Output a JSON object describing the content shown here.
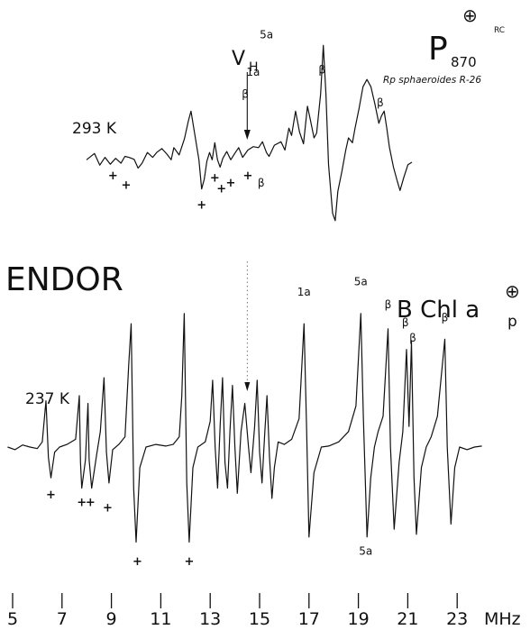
{
  "chart_data": {
    "type": "line",
    "x_unit": "MHz",
    "xlim": [
      5,
      24
    ],
    "x_ticks": [
      5,
      7,
      9,
      11,
      13,
      15,
      17,
      19,
      21,
      23
    ],
    "vh_label": "V",
    "vh_sub": "H",
    "vh_x": 14.5,
    "endor_label": "ENDOR",
    "top": {
      "temp_label": "293 K",
      "title_main": "P",
      "title_sub": "870",
      "title_sup": "⊕",
      "title_rc": "RC",
      "subtitle": "Rp  sphaeroides R-26",
      "xrange": [
        4.1,
        16.4
      ],
      "points": [
        [
          4.1,
          0.05
        ],
        [
          4.4,
          0.18
        ],
        [
          4.6,
          -0.06
        ],
        [
          4.8,
          0.1
        ],
        [
          5.0,
          -0.04
        ],
        [
          5.2,
          0.08
        ],
        [
          5.4,
          -0.02
        ],
        [
          5.55,
          0.12
        ],
        [
          5.7,
          0.1
        ],
        [
          5.9,
          0.06
        ],
        [
          6.05,
          -0.12
        ],
        [
          6.2,
          -0.02
        ],
        [
          6.4,
          0.2
        ],
        [
          6.6,
          0.1
        ],
        [
          6.75,
          0.2
        ],
        [
          6.95,
          0.28
        ],
        [
          7.15,
          0.16
        ],
        [
          7.3,
          0.05
        ],
        [
          7.4,
          0.3
        ],
        [
          7.6,
          0.15
        ],
        [
          7.8,
          0.48
        ],
        [
          7.95,
          0.85
        ],
        [
          8.05,
          1.05
        ],
        [
          8.2,
          0.55
        ],
        [
          8.35,
          0.05
        ],
        [
          8.45,
          -0.55
        ],
        [
          8.55,
          -0.35
        ],
        [
          8.65,
          0.02
        ],
        [
          8.75,
          0.2
        ],
        [
          8.85,
          0.05
        ],
        [
          8.95,
          0.4
        ],
        [
          9.05,
          0.05
        ],
        [
          9.15,
          -0.1
        ],
        [
          9.25,
          0.08
        ],
        [
          9.4,
          0.22
        ],
        [
          9.55,
          0.05
        ],
        [
          9.7,
          0.18
        ],
        [
          9.85,
          0.3
        ],
        [
          10.0,
          0.1
        ],
        [
          10.2,
          0.25
        ],
        [
          10.4,
          0.32
        ],
        [
          10.6,
          0.3
        ],
        [
          10.75,
          0.42
        ],
        [
          10.9,
          0.2
        ],
        [
          11.0,
          0.12
        ],
        [
          11.2,
          0.35
        ],
        [
          11.45,
          0.42
        ],
        [
          11.6,
          0.25
        ],
        [
          11.75,
          0.7
        ],
        [
          11.85,
          0.55
        ],
        [
          12.0,
          1.05
        ],
        [
          12.15,
          0.62
        ],
        [
          12.3,
          0.38
        ],
        [
          12.45,
          1.15
        ],
        [
          12.55,
          0.9
        ],
        [
          12.7,
          0.5
        ],
        [
          12.8,
          0.6
        ],
        [
          12.95,
          1.4
        ],
        [
          13.05,
          2.4
        ],
        [
          13.15,
          1.4
        ],
        [
          13.25,
          -0.05
        ],
        [
          13.4,
          -1.05
        ],
        [
          13.5,
          -1.2
        ],
        [
          13.6,
          -0.6
        ],
        [
          13.75,
          -0.2
        ],
        [
          13.9,
          0.25
        ],
        [
          14.0,
          0.5
        ],
        [
          14.15,
          0.4
        ],
        [
          14.25,
          0.7
        ],
        [
          14.4,
          1.1
        ],
        [
          14.55,
          1.55
        ],
        [
          14.7,
          1.7
        ],
        [
          14.85,
          1.55
        ],
        [
          15.0,
          1.2
        ],
        [
          15.15,
          0.8
        ],
        [
          15.25,
          0.95
        ],
        [
          15.35,
          1.05
        ],
        [
          15.45,
          0.7
        ],
        [
          15.55,
          0.3
        ],
        [
          15.7,
          -0.1
        ],
        [
          15.85,
          -0.4
        ],
        [
          15.95,
          -0.58
        ],
        [
          16.1,
          -0.3
        ],
        [
          16.25,
          -0.05
        ],
        [
          16.4,
          0.0
        ]
      ],
      "annotations": [
        {
          "text": "β",
          "x": 10.1,
          "y": 1.32
        },
        {
          "text": "1a",
          "x": 10.4,
          "y": 1.78
        },
        {
          "text": "5a",
          "x": 10.9,
          "y": 2.55
        },
        {
          "text": "β",
          "x": 13.0,
          "y": 1.82
        },
        {
          "text": "β",
          "x": 15.2,
          "y": 1.15
        },
        {
          "text": "β",
          "x": 10.7,
          "y": -0.5
        },
        {
          "text": "+",
          "x": 5.1,
          "y": -0.35
        },
        {
          "text": "+",
          "x": 5.6,
          "y": -0.55
        },
        {
          "text": "+",
          "x": 8.45,
          "y": -0.95
        },
        {
          "text": "+",
          "x": 8.95,
          "y": -0.4
        },
        {
          "text": "+",
          "x": 9.2,
          "y": -0.62
        },
        {
          "text": "+",
          "x": 9.55,
          "y": -0.5
        },
        {
          "text": "+",
          "x": 10.2,
          "y": -0.35
        }
      ]
    },
    "bottom": {
      "temp_label": "237 K",
      "title_main": "B Chl a",
      "title_sub": "p",
      "title_sup": "⊕",
      "xrange": [
        4.8,
        24.0
      ],
      "points": [
        [
          4.8,
          0.0
        ],
        [
          5.1,
          -0.05
        ],
        [
          5.4,
          0.04
        ],
        [
          5.7,
          0.0
        ],
        [
          6.0,
          -0.03
        ],
        [
          6.2,
          0.1
        ],
        [
          6.35,
          0.9
        ],
        [
          6.45,
          -0.2
        ],
        [
          6.55,
          -0.6
        ],
        [
          6.7,
          -0.1
        ],
        [
          6.9,
          0.0
        ],
        [
          7.2,
          0.05
        ],
        [
          7.55,
          0.15
        ],
        [
          7.7,
          1.0
        ],
        [
          7.75,
          -0.3
        ],
        [
          7.8,
          -0.8
        ],
        [
          7.95,
          -0.25
        ],
        [
          8.05,
          0.85
        ],
        [
          8.1,
          -0.25
        ],
        [
          8.2,
          -0.8
        ],
        [
          8.4,
          -0.15
        ],
        [
          8.55,
          0.3
        ],
        [
          8.7,
          1.35
        ],
        [
          8.8,
          -0.1
        ],
        [
          8.9,
          -0.7
        ],
        [
          9.05,
          -0.05
        ],
        [
          9.3,
          0.05
        ],
        [
          9.55,
          0.2
        ],
        [
          9.7,
          1.6
        ],
        [
          9.8,
          2.4
        ],
        [
          9.9,
          -0.8
        ],
        [
          10.0,
          -1.85
        ],
        [
          10.15,
          -0.4
        ],
        [
          10.4,
          0.0
        ],
        [
          10.8,
          0.05
        ],
        [
          11.2,
          0.02
        ],
        [
          11.5,
          0.05
        ],
        [
          11.75,
          0.2
        ],
        [
          11.85,
          1.0
        ],
        [
          11.95,
          2.6
        ],
        [
          12.05,
          -0.7
        ],
        [
          12.15,
          -1.85
        ],
        [
          12.3,
          -0.4
        ],
        [
          12.5,
          0.0
        ],
        [
          12.8,
          0.1
        ],
        [
          13.0,
          0.5
        ],
        [
          13.1,
          1.3
        ],
        [
          13.2,
          0.0
        ],
        [
          13.3,
          -0.8
        ],
        [
          13.4,
          0.4
        ],
        [
          13.5,
          1.35
        ],
        [
          13.6,
          -0.3
        ],
        [
          13.7,
          -0.8
        ],
        [
          13.8,
          0.3
        ],
        [
          13.9,
          1.2
        ],
        [
          14.0,
          0.0
        ],
        [
          14.1,
          -0.9
        ],
        [
          14.25,
          0.3
        ],
        [
          14.4,
          0.85
        ],
        [
          14.55,
          0.0
        ],
        [
          14.65,
          -0.5
        ],
        [
          14.8,
          0.4
        ],
        [
          14.9,
          1.3
        ],
        [
          15.0,
          -0.1
        ],
        [
          15.1,
          -0.7
        ],
        [
          15.2,
          0.2
        ],
        [
          15.3,
          1.0
        ],
        [
          15.4,
          -0.2
        ],
        [
          15.5,
          -1.0
        ],
        [
          15.6,
          -0.4
        ],
        [
          15.75,
          0.1
        ],
        [
          16.0,
          0.05
        ],
        [
          16.3,
          0.15
        ],
        [
          16.6,
          0.55
        ],
        [
          16.8,
          2.4
        ],
        [
          16.9,
          0.4
        ],
        [
          17.0,
          -1.75
        ],
        [
          17.2,
          -0.5
        ],
        [
          17.5,
          0.0
        ],
        [
          17.8,
          0.02
        ],
        [
          18.2,
          0.1
        ],
        [
          18.6,
          0.3
        ],
        [
          18.9,
          0.8
        ],
        [
          19.1,
          2.6
        ],
        [
          19.2,
          0.6
        ],
        [
          19.35,
          -1.75
        ],
        [
          19.5,
          -0.6
        ],
        [
          19.65,
          0.0
        ],
        [
          19.8,
          0.3
        ],
        [
          20.0,
          0.6
        ],
        [
          20.2,
          2.3
        ],
        [
          20.3,
          0.0
        ],
        [
          20.45,
          -1.6
        ],
        [
          20.65,
          -0.3
        ],
        [
          20.8,
          0.3
        ],
        [
          20.95,
          1.9
        ],
        [
          21.05,
          0.4
        ],
        [
          21.15,
          2.05
        ],
        [
          21.25,
          -0.6
        ],
        [
          21.35,
          -1.7
        ],
        [
          21.55,
          -0.4
        ],
        [
          21.75,
          0.0
        ],
        [
          21.95,
          0.2
        ],
        [
          22.2,
          0.6
        ],
        [
          22.5,
          2.1
        ],
        [
          22.6,
          0.0
        ],
        [
          22.75,
          -1.5
        ],
        [
          22.9,
          -0.4
        ],
        [
          23.1,
          0.0
        ],
        [
          23.4,
          -0.05
        ],
        [
          23.7,
          0.0
        ],
        [
          24.0,
          0.02
        ]
      ],
      "annotations": [
        {
          "text": "1a",
          "x": 16.8,
          "y": 2.95
        },
        {
          "text": "5a",
          "x": 19.1,
          "y": 3.15
        },
        {
          "text": "β",
          "x": 20.2,
          "y": 2.7
        },
        {
          "text": "β",
          "x": 20.9,
          "y": 2.35
        },
        {
          "text": "β",
          "x": 21.2,
          "y": 2.05
        },
        {
          "text": "β",
          "x": 22.5,
          "y": 2.45
        },
        {
          "text": "5a",
          "x": 19.3,
          "y": -2.1
        },
        {
          "text": "+",
          "x": 6.55,
          "y": -1.0
        },
        {
          "text": "+",
          "x": 7.8,
          "y": -1.15
        },
        {
          "text": "+",
          "x": 8.15,
          "y": -1.15
        },
        {
          "text": "+",
          "x": 8.85,
          "y": -1.25
        },
        {
          "text": "+",
          "x": 10.05,
          "y": -2.3
        },
        {
          "text": "+",
          "x": 12.15,
          "y": -2.3
        }
      ]
    }
  }
}
